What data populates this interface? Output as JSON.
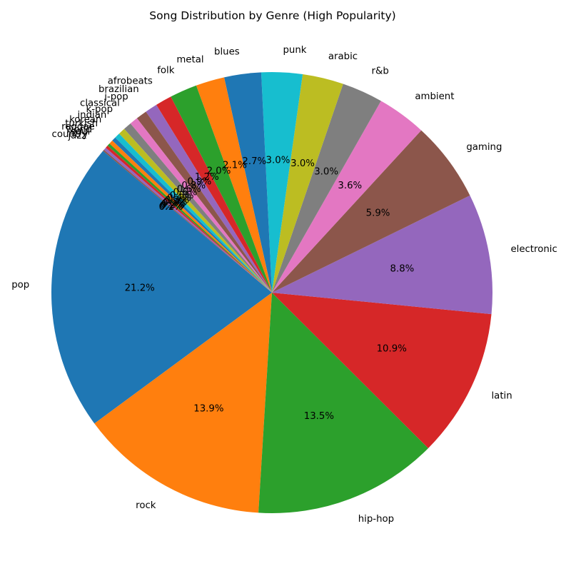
{
  "chart_data": {
    "type": "pie",
    "title": "Song Distribution by Genre (High Popularity)",
    "start_angle_deg": 140,
    "direction": "counterclockwise",
    "categories": [
      "pop",
      "rock",
      "hip-hop",
      "latin",
      "electronic",
      "gaming",
      "ambient",
      "r&b",
      "arabic",
      "punk",
      "blues",
      "metal",
      "folk",
      "afrobeats",
      "brazilian",
      "j-pop",
      "classical",
      "k-pop",
      "indian",
      "korean",
      "turkish",
      "reggae",
      "world",
      "soul",
      "country",
      "jazz"
    ],
    "values": [
      21.2,
      13.9,
      13.5,
      10.9,
      8.8,
      5.9,
      3.6,
      3.0,
      3.0,
      3.0,
      2.7,
      2.1,
      2.0,
      1.2,
      0.9,
      0.8,
      0.6,
      0.6,
      0.5,
      0.4,
      0.3,
      0.3,
      0.2,
      0.2,
      0.2,
      0.1
    ],
    "value_labels": [
      "21.2%",
      "13.9%",
      "13.5%",
      "10.9%",
      "8.8%",
      "5.9%",
      "3.6%",
      "3.0%",
      "3.0%",
      "3.0%",
      "2.7%",
      "2.1%",
      "2.0%",
      "1.2%",
      "0.9%",
      "0.8%",
      "0.6%",
      "0.6%",
      "0.5%",
      "0.4%",
      "0.3%",
      "0.3%",
      "0.2%",
      "0.2%",
      "0.2%",
      "0.1%"
    ],
    "colors": [
      "#1f77b4",
      "#ff7f0e",
      "#2ca02c",
      "#d62728",
      "#9467bd",
      "#8c564b",
      "#e377c2",
      "#7f7f7f",
      "#bcbd22",
      "#17becf",
      "#1f77b4",
      "#ff7f0e",
      "#2ca02c",
      "#d62728",
      "#9467bd",
      "#8c564b",
      "#e377c2",
      "#7f7f7f",
      "#bcbd22",
      "#17becf",
      "#1f77b4",
      "#ff7f0e",
      "#2ca02c",
      "#d62728",
      "#9467bd",
      "#8c564b"
    ],
    "legend": "none"
  }
}
